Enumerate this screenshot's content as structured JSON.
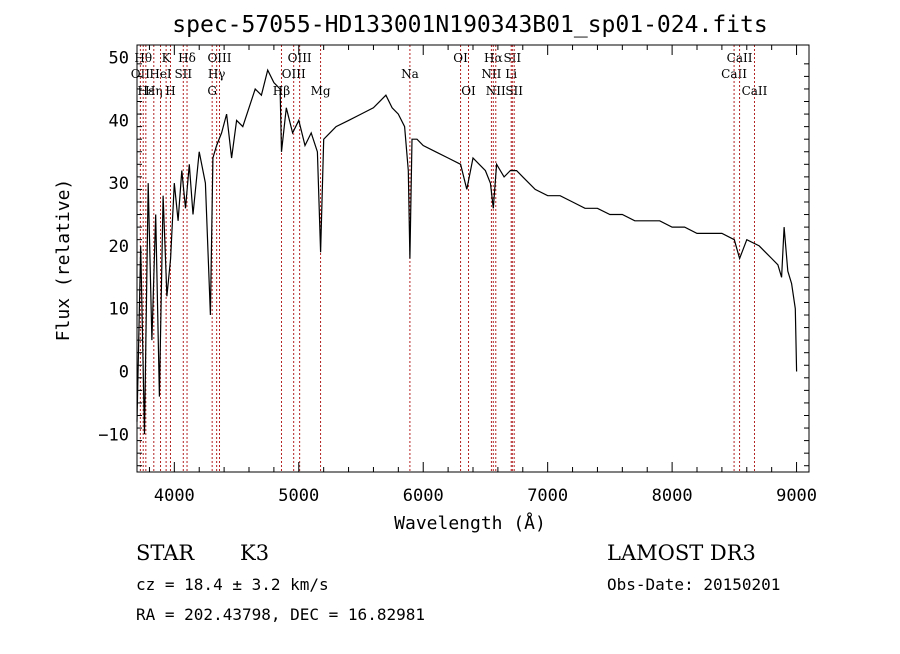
{
  "chart_data": {
    "type": "line",
    "title": "spec-57055-HD133001N190343B01_sp01-024.fits",
    "xlabel": "Wavelength (Å)",
    "ylabel": "Flux (relative)",
    "xlim": [
      3700,
      9100
    ],
    "ylim": [
      -16,
      52
    ],
    "xticks": [
      4000,
      5000,
      6000,
      7000,
      8000,
      9000
    ],
    "yticks": [
      -10,
      0,
      10,
      20,
      30,
      40,
      50
    ],
    "grid": false,
    "line_color": "#000000",
    "marker_color": "#b22222",
    "series": [
      {
        "x": [
          3700,
          3730,
          3760,
          3790,
          3820,
          3850,
          3880,
          3910,
          3940,
          3970,
          4000,
          4030,
          4060,
          4090,
          4120,
          4150,
          4200,
          4250,
          4290,
          4310,
          4340,
          4380,
          4420,
          4460,
          4500,
          4550,
          4600,
          4650,
          4700,
          4750,
          4800,
          4850,
          4861,
          4900,
          4950,
          5000,
          5050,
          5100,
          5150,
          5175,
          5200,
          5250,
          5300,
          5400,
          5500,
          5600,
          5700,
          5750,
          5800,
          5850,
          5880,
          5893,
          5910,
          5950,
          6000,
          6100,
          6200,
          6300,
          6350,
          6400,
          6450,
          6500,
          6540,
          6563,
          6590,
          6650,
          6700,
          6750,
          6800,
          6900,
          7000,
          7100,
          7200,
          7300,
          7400,
          7500,
          7600,
          7700,
          7800,
          7900,
          8000,
          8100,
          8200,
          8300,
          8400,
          8500,
          8542,
          8600,
          8700,
          8750,
          8800,
          8850,
          8880,
          8900,
          8930,
          8960,
          8990,
          9000
        ],
        "y": [
          -8,
          20,
          -10,
          30,
          5,
          25,
          -4,
          28,
          12,
          18,
          30,
          24,
          32,
          26,
          33,
          25,
          35,
          30,
          9,
          34,
          36,
          38,
          41,
          34,
          40,
          39,
          42,
          45,
          44,
          48,
          46,
          45,
          35,
          42,
          38,
          40,
          36,
          38,
          35,
          19,
          37,
          38,
          39,
          40,
          41,
          42,
          44,
          42,
          41,
          39,
          32,
          18,
          37,
          37,
          36,
          35,
          34,
          33,
          29,
          34,
          33,
          32,
          30,
          26,
          33,
          31,
          32,
          32,
          31,
          29,
          28,
          28,
          27,
          26,
          26,
          25,
          25,
          24,
          24,
          24,
          23,
          23,
          22,
          22,
          22,
          21,
          18,
          21,
          20,
          19,
          18,
          17,
          15,
          23,
          16,
          14,
          10,
          0
        ]
      }
    ],
    "lines": [
      {
        "w": 3727,
        "label": "OII",
        "row": 1
      },
      {
        "w": 3750,
        "label": "Hθ",
        "row": 0
      },
      {
        "w": 3771,
        "label": "Hε",
        "row": 2
      },
      {
        "w": 3835,
        "label": "Hη",
        "row": 2
      },
      {
        "w": 3889,
        "label": "HeI",
        "row": 1
      },
      {
        "w": 3934,
        "label": "K",
        "row": 0
      },
      {
        "w": 3969,
        "label": "H",
        "row": 2
      },
      {
        "w": 4072,
        "label": "SII",
        "row": 1
      },
      {
        "w": 4102,
        "label": "Hδ",
        "row": 0
      },
      {
        "w": 4304,
        "label": "G",
        "row": 2
      },
      {
        "w": 4340,
        "label": "Hγ",
        "row": 1
      },
      {
        "w": 4363,
        "label": "OIII",
        "row": 0
      },
      {
        "w": 4861,
        "label": "Hβ",
        "row": 2
      },
      {
        "w": 4959,
        "label": "OIII",
        "row": 1
      },
      {
        "w": 5007,
        "label": "OIII",
        "row": 0
      },
      {
        "w": 5175,
        "label": "Mg",
        "row": 2
      },
      {
        "w": 5893,
        "label": "Na",
        "row": 1
      },
      {
        "w": 6300,
        "label": "OI",
        "row": 0
      },
      {
        "w": 6364,
        "label": "OI",
        "row": 2
      },
      {
        "w": 6548,
        "label": "NII",
        "row": 1
      },
      {
        "w": 6563,
        "label": "Hα",
        "row": 0
      },
      {
        "w": 6583,
        "label": "NII",
        "row": 2
      },
      {
        "w": 6707,
        "label": "Li",
        "row": 1
      },
      {
        "w": 6716,
        "label": "SII",
        "row": 0
      },
      {
        "w": 6731,
        "label": "SII",
        "row": 2
      },
      {
        "w": 8498,
        "label": "CaII",
        "row": 1
      },
      {
        "w": 8542,
        "label": "CaII",
        "row": 0
      },
      {
        "w": 8662,
        "label": "CaII",
        "row": 2
      }
    ]
  },
  "info": {
    "class": "STAR",
    "subclass": "K3",
    "survey": "LAMOST DR3",
    "cz": "cz = 18.4 ± 3.2 km/s",
    "obsdate": "Obs-Date: 20150201",
    "radec": "RA = 202.43798, DEC =  16.82981"
  }
}
